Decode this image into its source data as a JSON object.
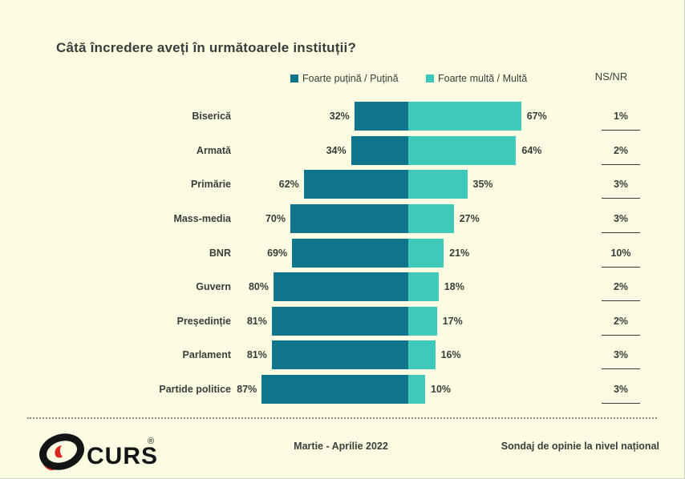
{
  "page": {
    "title": "Câtă încredere aveți în următoarele instituții?"
  },
  "legend": {
    "series1_label": "Foarte puțină / Puțină",
    "series2_label": "Foarte multă / Multă",
    "nsnr_label": "NS/NR"
  },
  "chart_data": {
    "type": "bar",
    "subtype": "diverging-horizontal-stacked",
    "title": "Câtă încredere aveți în următoarele instituții?",
    "categories": [
      "Biserică",
      "Armată",
      "Primărie",
      "Mass-media",
      "BNR",
      "Guvern",
      "Președinție",
      "Parlament",
      "Partide politice"
    ],
    "series": [
      {
        "name": "Foarte puțină / Puțină",
        "color": "#0E758B",
        "values": [
          32,
          34,
          62,
          70,
          69,
          80,
          81,
          81,
          87
        ]
      },
      {
        "name": "Foarte multă / Multă",
        "color": "#3EC9BB",
        "values": [
          67,
          64,
          35,
          27,
          21,
          18,
          17,
          16,
          10
        ]
      }
    ],
    "nsnr": {
      "name": "NS/NR",
      "values": [
        1,
        2,
        3,
        3,
        10,
        2,
        2,
        3,
        3
      ]
    },
    "value_suffix": "%",
    "value_labels_shown": true,
    "grid": false,
    "legend_position": "top"
  },
  "footer": {
    "logo_text": "CURS",
    "registered_mark": "®",
    "period": "Martie - Aprilie 2022",
    "note": "Sondaj de opinie la nivel național"
  },
  "colors": {
    "background": "#FCFCE2",
    "bar_negative": "#0E758B",
    "bar_positive": "#3EC9BB",
    "text": "#3B3B3B",
    "logo_red": "#D8281F",
    "logo_black": "#141414"
  }
}
